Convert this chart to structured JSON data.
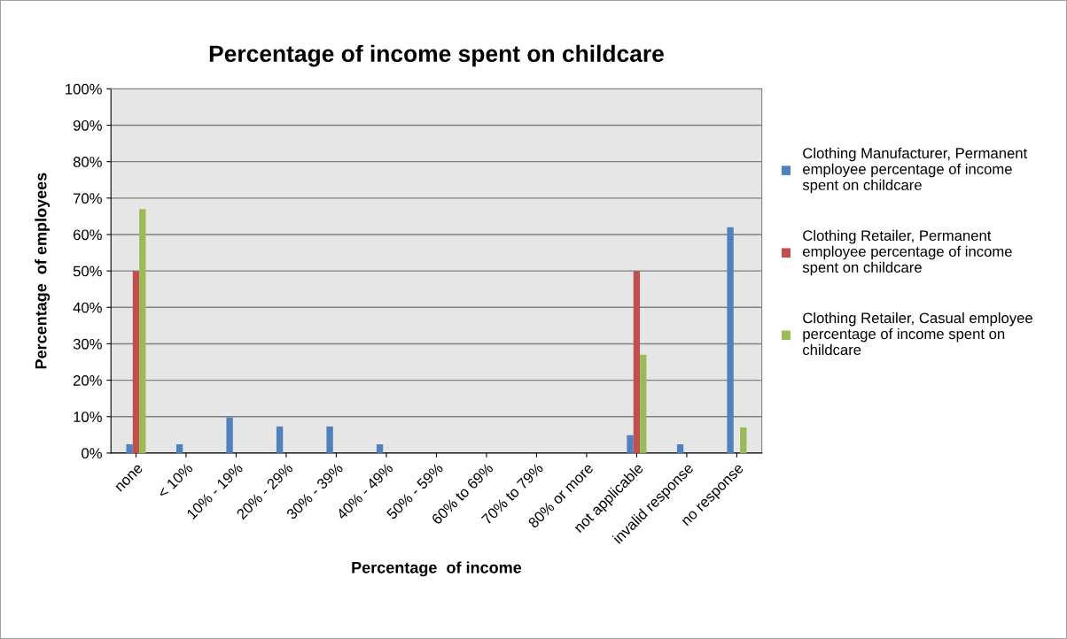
{
  "chart_data": {
    "type": "bar",
    "title": "Percentage of income spent on childcare",
    "xlabel": "Percentage  of income",
    "ylabel": "Percentage  of employees",
    "categories": [
      "none",
      "< 10%",
      "10% - 19%",
      "20% - 29%",
      "30% - 39%",
      "40% - 49%",
      "50% - 59%",
      "60% to 69%",
      "70% to 79%",
      "80% or more",
      "not applicable",
      "invalid response",
      "no response"
    ],
    "series": [
      {
        "name": "Clothing Manufacturer, Permanent employee percentage of income spent on childcare",
        "color": "#4f81bd",
        "values": [
          2.4,
          2.4,
          9.8,
          7.3,
          7.3,
          2.4,
          0,
          0,
          0,
          0,
          4.9,
          2.4,
          62
        ]
      },
      {
        "name": "Clothing Retailer, Permanent employee percentage of income spent on childcare",
        "color": "#c0504d",
        "values": [
          50,
          0,
          0,
          0,
          0,
          0,
          0,
          0,
          0,
          0,
          50,
          0,
          0
        ]
      },
      {
        "name": "Clothing Retailer, Casual employee percentage of income spent on childcare",
        "color": "#9bbb59",
        "values": [
          67,
          0,
          0,
          0,
          0,
          0,
          0,
          0,
          0,
          0,
          27,
          0,
          7
        ]
      }
    ],
    "ylim": [
      0,
      100
    ],
    "yticks": [
      {
        "value": 0,
        "label": "0%"
      },
      {
        "value": 10,
        "label": "10%"
      },
      {
        "value": 20,
        "label": "20%"
      },
      {
        "value": 30,
        "label": "30%"
      },
      {
        "value": 40,
        "label": "40%"
      },
      {
        "value": 50,
        "label": "50%"
      },
      {
        "value": 60,
        "label": "60%"
      },
      {
        "value": 70,
        "label": "70%"
      },
      {
        "value": 80,
        "label": "80%"
      },
      {
        "value": 90,
        "label": "90%"
      },
      {
        "value": 100,
        "label": "100%"
      }
    ],
    "grid": "y",
    "legend": "right"
  }
}
